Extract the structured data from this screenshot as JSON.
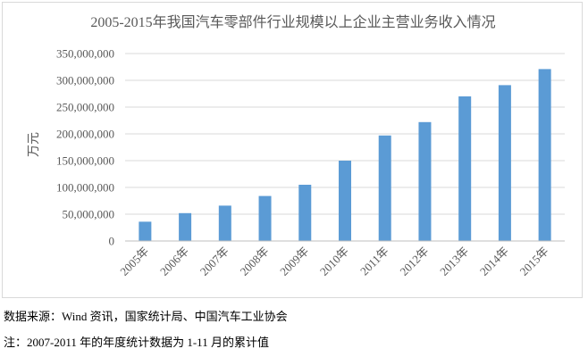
{
  "chart_data": {
    "type": "bar",
    "title": "2005-2015年我国汽车零部件行业规模以上企业主营业务收入情况",
    "ylabel": "万元",
    "xlabel": "",
    "categories": [
      "2005年",
      "2006年",
      "2007年",
      "2008年",
      "2009年",
      "2010年",
      "2011年",
      "2012年",
      "2013年",
      "2014年",
      "2015年"
    ],
    "values": [
      36000000,
      52000000,
      66000000,
      84000000,
      105000000,
      150000000,
      197000000,
      222000000,
      270000000,
      291000000,
      321000000
    ],
    "ylim": [
      0,
      350000000
    ],
    "yticks": [
      "0",
      "50,000,000",
      "100,000,000",
      "150,000,000",
      "200,000,000",
      "250,000,000",
      "300,000,000",
      "350,000,000"
    ],
    "grid": true,
    "bar_color": "#5b9bd5"
  },
  "footer": {
    "source": "数据来源：Wind 资讯，国家统计局、中国汽车工业协会",
    "note": "注：2007-2011 年的年度统计数据为 1-11 月的累计值"
  }
}
